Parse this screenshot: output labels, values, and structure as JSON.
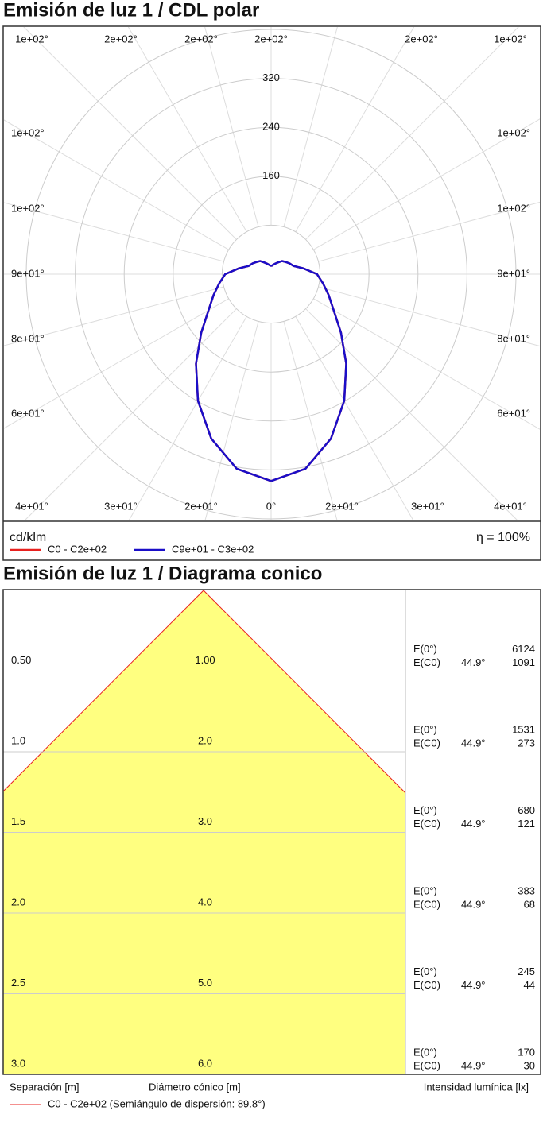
{
  "chart_data": [
    {
      "type": "polar",
      "title": "Emisión de luz 1 / CDL polar",
      "unit": "cd/klm",
      "efficiency": "η = 100%",
      "angles": [
        0,
        10,
        20,
        30,
        40,
        50,
        60,
        70,
        80,
        90,
        100,
        110,
        120,
        130,
        140,
        150,
        160,
        170,
        180
      ],
      "series": [
        {
          "name": "C0 - C2e+02",
          "color": "#e8211f",
          "values": [
            338,
            323,
            286,
            239,
            191,
            149,
            118,
            100,
            86,
            75,
            54,
            39,
            35,
            31,
            28,
            22,
            18,
            15,
            13
          ]
        },
        {
          "name": "C9e+01 - C3e+02",
          "color": "#1a0ec8",
          "values": [
            338,
            323,
            286,
            239,
            191,
            149,
            118,
            100,
            86,
            75,
            54,
            39,
            35,
            31,
            28,
            22,
            18,
            15,
            13
          ]
        }
      ],
      "rlim": [
        0,
        400
      ],
      "rticks": [
        160,
        240,
        320
      ],
      "rgrid": [
        80,
        160,
        240,
        320,
        400
      ],
      "angle_labels": {
        "top": [
          "1e+02°",
          "2e+02°",
          "2e+02°",
          "2e+02°",
          "2e+02°",
          "1e+02°"
        ],
        "left": [
          "1e+02°",
          "1e+02°",
          "9e+01°",
          "8e+01°",
          "6e+01°"
        ],
        "right": [
          "1e+02°",
          "1e+02°",
          "9e+01°",
          "8e+01°",
          "6e+01°"
        ],
        "bottom": [
          "4e+01°",
          "3e+01°",
          "2e+01°",
          "0°",
          "2e+01°",
          "3e+01°",
          "4e+01°"
        ]
      }
    },
    {
      "type": "cone",
      "title": "Emisión de luz 1 / Diagrama conico",
      "ylim": [
        0,
        3
      ],
      "fill": "#ffff80",
      "distances": [
        {
          "value": 0.5,
          "label": "0.50"
        },
        {
          "value": 1,
          "label": "1.0"
        },
        {
          "value": 1.5,
          "label": "1.5"
        },
        {
          "value": 2,
          "label": "2.0"
        },
        {
          "value": 2.5,
          "label": "2.5"
        },
        {
          "value": 3,
          "label": "3.0"
        }
      ],
      "diameters": [
        {
          "value": 1,
          "label": "1.00"
        },
        {
          "value": 2,
          "label": "2.0"
        },
        {
          "value": 3,
          "label": "3.0"
        },
        {
          "value": 4,
          "label": "4.0"
        },
        {
          "value": 5,
          "label": "5.0"
        },
        {
          "value": 6,
          "label": "6.0"
        }
      ],
      "e0_label": "E(0°)",
      "ec0_label": "E(C0)",
      "angle": {
        "value": 44.9,
        "label": "44.9°"
      },
      "e0": [
        6124,
        1531,
        680,
        383,
        245,
        170
      ],
      "ec0": [
        1091,
        273,
        121,
        68,
        44,
        30
      ],
      "axis_labels": {
        "distance": "Separación [m]",
        "diameter": "Diámetro cónico [m]",
        "illuminance": "Intensidad lumínica [lx]"
      },
      "series": [
        {
          "name": "C0 - C2e+02 (Semiángulo de dispersión: 89.8°)",
          "color": "#e8211f"
        }
      ]
    }
  ]
}
